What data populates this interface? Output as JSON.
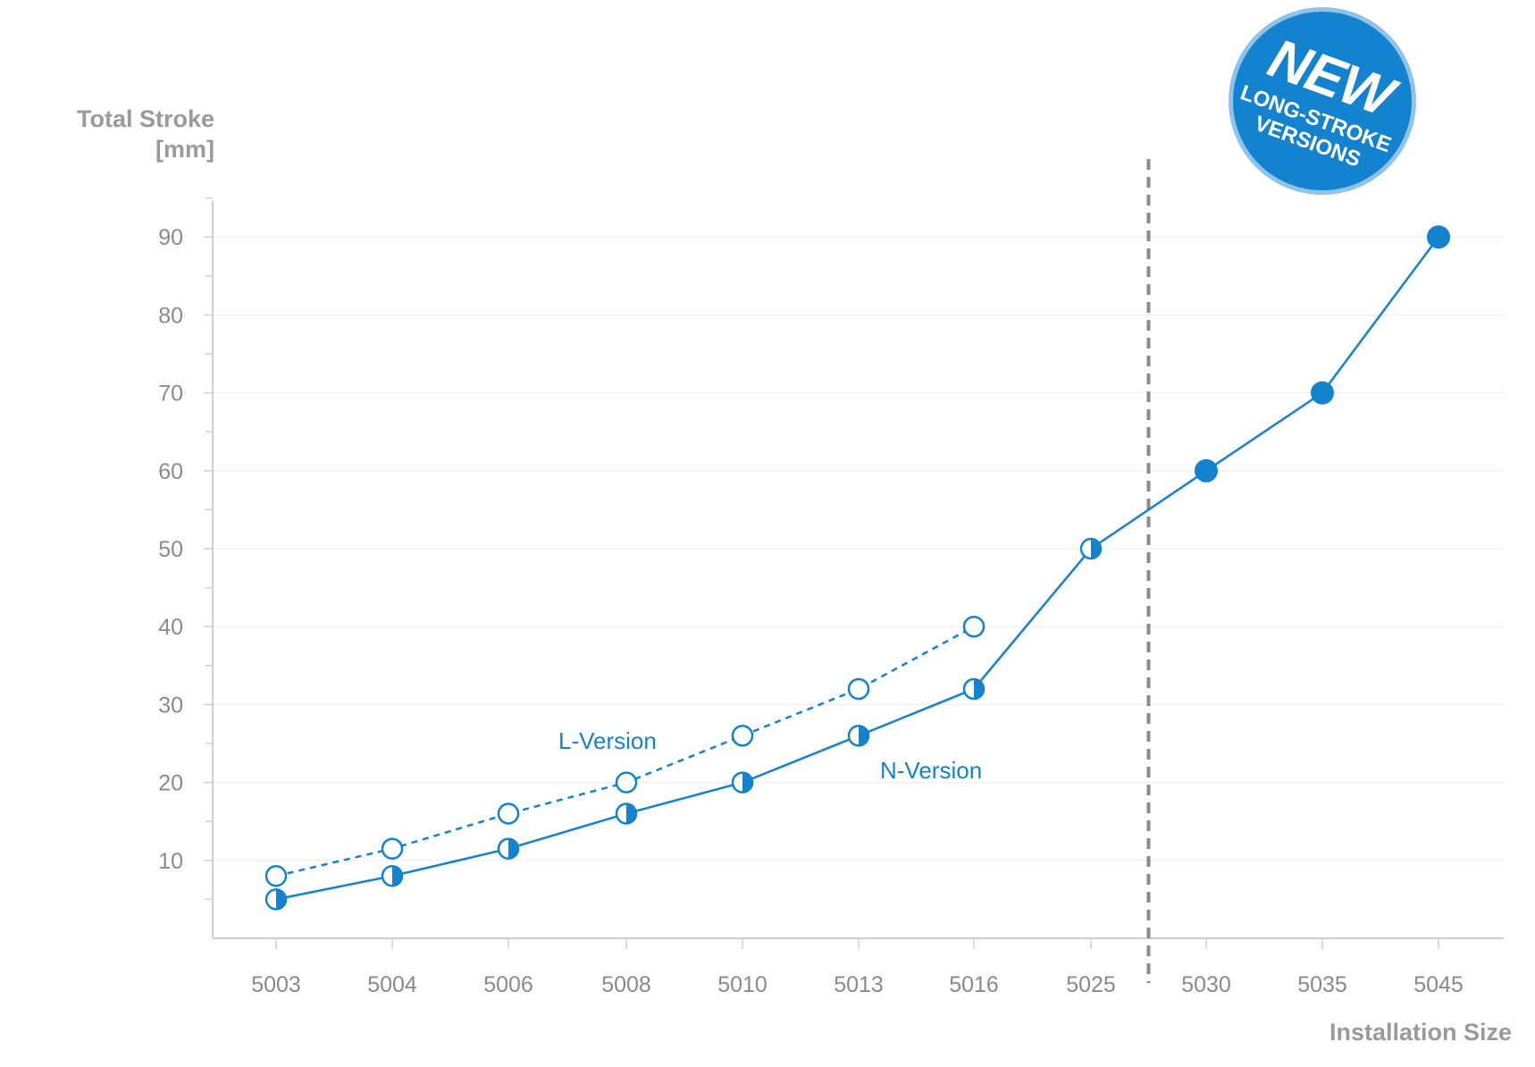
{
  "y_title": {
    "line1": "Total Stroke",
    "line2": "[mm]"
  },
  "x_title": "Installation Size",
  "badge": {
    "big": "NEW",
    "line1": "LONG-STROKE",
    "line2": "VERSIONS"
  },
  "colors": {
    "accent": "#1382cf",
    "axis": "#cfcfcf",
    "grid": "#f0f0f0",
    "tick_text": "#8a8a8a",
    "divider": "#8a8a8a"
  },
  "chart_data": {
    "type": "line",
    "categories": [
      "5003",
      "5004",
      "5006",
      "5008",
      "5010",
      "5013",
      "5016",
      "5025",
      "5030",
      "5035",
      "5045"
    ],
    "xlabel": "Installation Size",
    "ylabel": "Total Stroke [mm]",
    "ylim": [
      0,
      95
    ],
    "yticks": [
      10,
      20,
      30,
      40,
      50,
      60,
      70,
      80,
      90
    ],
    "grid": true,
    "series": [
      {
        "name": "L-Version",
        "style": "dashed",
        "marker": "open-circle",
        "values": [
          8,
          11.5,
          16,
          20,
          26,
          32,
          40,
          null,
          null,
          null,
          null
        ]
      },
      {
        "name": "N-Version",
        "style": "solid",
        "marker": "half-filled-circle",
        "values": [
          5,
          8,
          11.5,
          16,
          20,
          26,
          32,
          50,
          null,
          null,
          null
        ]
      },
      {
        "name": "",
        "style": "solid",
        "marker": "filled-circle",
        "values": [
          null,
          null,
          null,
          null,
          null,
          null,
          null,
          50,
          60,
          70,
          90
        ]
      }
    ],
    "divider": "between 5025 and 5030 (dashed vertical line)",
    "badge_text": "NEW LONG-STROKE VERSIONS"
  }
}
